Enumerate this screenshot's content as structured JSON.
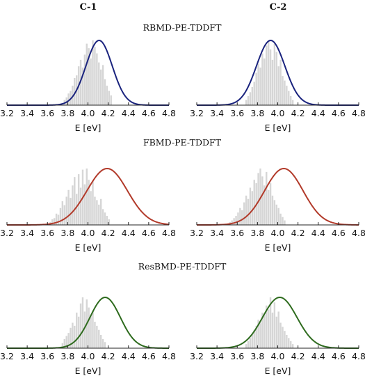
{
  "columns": [
    "C-1",
    "C-2"
  ],
  "rows": [
    "RBMD-PE-TDDFT",
    "FBMD-PE-TDDFT",
    "ResBMD-PE-TDDFT"
  ],
  "chart_data": [
    {
      "type": "area",
      "row": "RBMD-PE-TDDFT",
      "column": "C-1",
      "xlabel": "E [eV]",
      "xlim": [
        3.2,
        4.8
      ],
      "xticks": [
        "3.2",
        "3.4",
        "3.6",
        "3.8",
        "4.0",
        "4.2",
        "4.4",
        "4.6",
        "4.8"
      ],
      "series": [
        {
          "kind": "gaussian-fit",
          "color": "#1a237e",
          "mean": 4.11,
          "sigma": 0.13
        }
      ],
      "histogram": {
        "bin_start": 3.76,
        "bin_width": 0.02,
        "counts": [
          0.08,
          0.12,
          0.18,
          0.22,
          0.3,
          0.42,
          0.46,
          0.6,
          0.7,
          0.58,
          0.78,
          0.95,
          0.88,
          0.72,
          1.0,
          0.9,
          0.8,
          0.66,
          0.55,
          0.62,
          0.4,
          0.3,
          0.22,
          0.15
        ]
      }
    },
    {
      "type": "area",
      "row": "RBMD-PE-TDDFT",
      "column": "C-2",
      "xlabel": "E [eV]",
      "xlim": [
        3.2,
        4.8
      ],
      "xticks": [
        "3.2",
        "3.4",
        "3.6",
        "3.8",
        "4.0",
        "4.2",
        "4.4",
        "4.6",
        "4.8"
      ],
      "series": [
        {
          "kind": "gaussian-fit",
          "color": "#1a237e",
          "mean": 3.93,
          "sigma": 0.14
        }
      ],
      "histogram": {
        "bin_start": 3.68,
        "bin_width": 0.02,
        "counts": [
          0.08,
          0.14,
          0.2,
          0.28,
          0.36,
          0.5,
          0.64,
          0.58,
          0.8,
          0.72,
          0.92,
          1.0,
          0.86,
          0.7,
          0.95,
          0.82,
          0.6,
          0.7,
          0.45,
          0.38,
          0.3,
          0.22,
          0.14,
          0.08
        ]
      }
    },
    {
      "type": "area",
      "row": "FBMD-PE-TDDFT",
      "column": "C-1",
      "xlabel": "E [eV]",
      "xlim": [
        3.2,
        4.8
      ],
      "xticks": [
        "3.2",
        "3.4",
        "3.6",
        "3.8",
        "4.0",
        "4.2",
        "4.4",
        "4.6",
        "4.8"
      ],
      "series": [
        {
          "kind": "gaussian-fit",
          "color": "#b23a2a",
          "mean": 4.19,
          "sigma": 0.2
        }
      ],
      "histogram": {
        "bin_start": 3.62,
        "bin_width": 0.02,
        "counts": [
          0.05,
          0.1,
          0.12,
          0.2,
          0.18,
          0.3,
          0.42,
          0.35,
          0.5,
          0.62,
          0.48,
          0.7,
          0.85,
          0.55,
          0.9,
          0.66,
          0.98,
          0.72,
          1.0,
          0.8,
          0.6,
          0.78,
          0.5,
          0.44,
          0.36,
          0.46,
          0.28,
          0.22,
          0.16,
          0.1
        ]
      }
    },
    {
      "type": "area",
      "row": "FBMD-PE-TDDFT",
      "column": "C-2",
      "xlabel": "E [eV]",
      "xlim": [
        3.2,
        4.8
      ],
      "xticks": [
        "3.2",
        "3.4",
        "3.6",
        "3.8",
        "4.0",
        "4.2",
        "4.4",
        "4.6",
        "4.8"
      ],
      "series": [
        {
          "kind": "gaussian-fit",
          "color": "#b23a2a",
          "mean": 4.06,
          "sigma": 0.19
        }
      ],
      "histogram": {
        "bin_start": 3.52,
        "bin_width": 0.02,
        "counts": [
          0.05,
          0.08,
          0.12,
          0.16,
          0.22,
          0.3,
          0.26,
          0.4,
          0.52,
          0.46,
          0.66,
          0.6,
          0.8,
          0.74,
          0.92,
          1.0,
          0.86,
          0.7,
          0.94,
          0.62,
          0.74,
          0.52,
          0.44,
          0.36,
          0.3,
          0.2,
          0.14,
          0.08
        ]
      }
    },
    {
      "type": "area",
      "row": "ResBMD-PE-TDDFT",
      "column": "C-1",
      "xlabel": "E [eV]",
      "xlim": [
        3.2,
        4.8
      ],
      "xticks": [
        "3.2",
        "3.4",
        "3.6",
        "3.8",
        "4.0",
        "4.2",
        "4.4",
        "4.6",
        "4.8"
      ],
      "series": [
        {
          "kind": "gaussian-fit",
          "color": "#2e6b1e",
          "mean": 4.17,
          "sigma": 0.15
        }
      ],
      "histogram": {
        "bin_start": 3.74,
        "bin_width": 0.02,
        "counts": [
          0.1,
          0.18,
          0.24,
          0.3,
          0.4,
          0.5,
          0.44,
          0.7,
          0.62,
          0.88,
          1.0,
          0.72,
          0.96,
          0.8,
          0.66,
          0.74,
          0.52,
          0.44,
          0.36,
          0.26,
          0.18,
          0.12
        ]
      }
    },
    {
      "type": "area",
      "row": "ResBMD-PE-TDDFT",
      "column": "C-2",
      "xlabel": "E [eV]",
      "xlim": [
        3.2,
        4.8
      ],
      "xticks": [
        "3.2",
        "3.4",
        "3.6",
        "3.8",
        "4.0",
        "4.2",
        "4.4",
        "4.6",
        "4.8"
      ],
      "series": [
        {
          "kind": "gaussian-fit",
          "color": "#2e6b1e",
          "mean": 4.02,
          "sigma": 0.17
        }
      ],
      "histogram": {
        "bin_start": 3.68,
        "bin_width": 0.02,
        "counts": [
          0.08,
          0.14,
          0.2,
          0.28,
          0.36,
          0.44,
          0.56,
          0.5,
          0.7,
          0.66,
          0.84,
          0.76,
          1.0,
          0.7,
          0.9,
          0.62,
          0.72,
          0.5,
          0.42,
          0.34,
          0.26,
          0.2,
          0.14,
          0.08
        ]
      }
    }
  ]
}
